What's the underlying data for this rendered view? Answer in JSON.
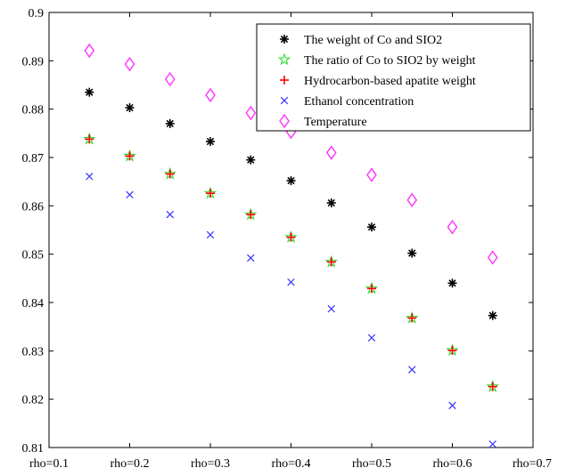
{
  "chart_data": {
    "type": "scatter",
    "title": "",
    "xlabel": "",
    "ylabel": "",
    "x": [
      0.15,
      0.2,
      0.25,
      0.3,
      0.35,
      0.4,
      0.45,
      0.5,
      0.55,
      0.6,
      0.65
    ],
    "xlim": [
      0.1,
      0.7
    ],
    "ylim": [
      0.81,
      0.9
    ],
    "x_ticks": [
      0.1,
      0.2,
      0.3,
      0.4,
      0.5,
      0.6,
      0.7
    ],
    "x_tick_labels": [
      "rho=0.1",
      "rho=0.2",
      "rho=0.3",
      "rho=0.4",
      "rho=0.5",
      "rho=0.6",
      "rho=0.7"
    ],
    "y_ticks": [
      0.81,
      0.82,
      0.83,
      0.84,
      0.85,
      0.86,
      0.87,
      0.88,
      0.89,
      0.9
    ],
    "y_tick_labels": [
      "0.81",
      "0.82",
      "0.83",
      "0.84",
      "0.85",
      "0.86",
      "0.87",
      "0.88",
      "0.89",
      "0.9"
    ],
    "grid": false,
    "legend_position": "top-right",
    "series": [
      {
        "name": "The weight of Co and SIO2",
        "marker": "asterisk",
        "color": "#000000",
        "values": [
          0.8835,
          0.8803,
          0.877,
          0.8733,
          0.8695,
          0.8652,
          0.8606,
          0.8556,
          0.8502,
          0.844,
          0.8373
        ]
      },
      {
        "name": "The ratio of Co to SIO2 by weight",
        "marker": "pentagram",
        "color": "#33dd33",
        "values": [
          0.8738,
          0.8703,
          0.8666,
          0.8626,
          0.8582,
          0.8535,
          0.8484,
          0.8429,
          0.8368,
          0.8301,
          0.8226
        ]
      },
      {
        "name": "Hydrocarbon-based apatite weight",
        "marker": "plus",
        "color": "#ff0000",
        "values": [
          0.8738,
          0.8703,
          0.8666,
          0.8626,
          0.8582,
          0.8535,
          0.8484,
          0.8429,
          0.8368,
          0.8301,
          0.8226
        ]
      },
      {
        "name": "Ethanol concentration",
        "marker": "x",
        "color": "#3333ff",
        "values": [
          0.8661,
          0.8623,
          0.8582,
          0.854,
          0.8492,
          0.8442,
          0.8387,
          0.8327,
          0.8261,
          0.8187,
          0.8107
        ]
      },
      {
        "name": "Temperature",
        "marker": "diamond",
        "color": "#ff33ff",
        "values": [
          0.8921,
          0.8893,
          0.8862,
          0.8829,
          0.8792,
          0.8753,
          0.871,
          0.8664,
          0.8612,
          0.8556,
          0.8493
        ]
      }
    ]
  }
}
